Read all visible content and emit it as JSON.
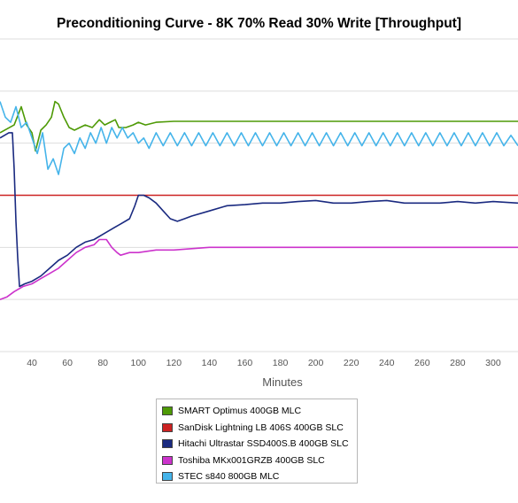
{
  "chart_data": {
    "type": "line",
    "title": "Preconditioning Curve - 8K 70% Read 30% Write [Throughput]",
    "xlabel": "Minutes",
    "ylabel": "",
    "xlim": [
      22,
      314
    ],
    "ylim": [
      0,
      6
    ],
    "x_ticks": [
      40,
      60,
      80,
      100,
      120,
      140,
      160,
      180,
      200,
      220,
      240,
      260,
      280,
      300
    ],
    "grid": true,
    "legend_position": "bottom",
    "series": [
      {
        "name": "SMART Optimus 400GB MLC",
        "color": "#4e9a06",
        "points": [
          [
            22,
            4.2
          ],
          [
            30,
            4.35
          ],
          [
            34,
            4.7
          ],
          [
            37,
            4.35
          ],
          [
            40,
            4.2
          ],
          [
            42,
            3.85
          ],
          [
            45,
            4.25
          ],
          [
            48,
            4.35
          ],
          [
            51,
            4.5
          ],
          [
            53,
            4.8
          ],
          [
            55,
            4.75
          ],
          [
            58,
            4.5
          ],
          [
            61,
            4.3
          ],
          [
            64,
            4.25
          ],
          [
            67,
            4.3
          ],
          [
            70,
            4.35
          ],
          [
            74,
            4.3
          ],
          [
            78,
            4.45
          ],
          [
            81,
            4.35
          ],
          [
            84,
            4.4
          ],
          [
            87,
            4.45
          ],
          [
            89,
            4.3
          ],
          [
            93,
            4.3
          ],
          [
            97,
            4.35
          ],
          [
            100,
            4.4
          ],
          [
            104,
            4.35
          ],
          [
            110,
            4.4
          ],
          [
            120,
            4.42
          ],
          [
            140,
            4.42
          ],
          [
            160,
            4.42
          ],
          [
            180,
            4.42
          ],
          [
            200,
            4.42
          ],
          [
            220,
            4.42
          ],
          [
            240,
            4.42
          ],
          [
            260,
            4.42
          ],
          [
            280,
            4.42
          ],
          [
            300,
            4.42
          ],
          [
            314,
            4.42
          ]
        ]
      },
      {
        "name": "SanDisk Lightning LB 406S 400GB SLC",
        "color": "#cc2222",
        "points": [
          [
            22,
            3.0
          ],
          [
            60,
            3.0
          ],
          [
            100,
            3.0
          ],
          [
            140,
            3.0
          ],
          [
            180,
            3.0
          ],
          [
            220,
            3.0
          ],
          [
            260,
            3.0
          ],
          [
            300,
            3.0
          ],
          [
            314,
            3.0
          ]
        ]
      },
      {
        "name": "Hitachi Ultrastar SSD400S.B 400GB SLC",
        "color": "#1a2a80",
        "points": [
          [
            22,
            4.1
          ],
          [
            27,
            4.2
          ],
          [
            29,
            4.2
          ],
          [
            30,
            3.5
          ],
          [
            31,
            2.5
          ],
          [
            32,
            1.8
          ],
          [
            33,
            1.25
          ],
          [
            36,
            1.3
          ],
          [
            40,
            1.35
          ],
          [
            45,
            1.45
          ],
          [
            50,
            1.6
          ],
          [
            55,
            1.75
          ],
          [
            60,
            1.85
          ],
          [
            65,
            2.0
          ],
          [
            70,
            2.1
          ],
          [
            75,
            2.15
          ],
          [
            80,
            2.25
          ],
          [
            85,
            2.35
          ],
          [
            90,
            2.45
          ],
          [
            95,
            2.55
          ],
          [
            98,
            2.8
          ],
          [
            100,
            3.0
          ],
          [
            103,
            3.0
          ],
          [
            106,
            2.95
          ],
          [
            110,
            2.85
          ],
          [
            114,
            2.7
          ],
          [
            118,
            2.55
          ],
          [
            122,
            2.5
          ],
          [
            126,
            2.55
          ],
          [
            130,
            2.6
          ],
          [
            140,
            2.7
          ],
          [
            150,
            2.8
          ],
          [
            160,
            2.82
          ],
          [
            170,
            2.85
          ],
          [
            180,
            2.85
          ],
          [
            190,
            2.88
          ],
          [
            200,
            2.9
          ],
          [
            210,
            2.85
          ],
          [
            220,
            2.85
          ],
          [
            230,
            2.88
          ],
          [
            240,
            2.9
          ],
          [
            250,
            2.85
          ],
          [
            260,
            2.85
          ],
          [
            270,
            2.85
          ],
          [
            280,
            2.88
          ],
          [
            290,
            2.85
          ],
          [
            300,
            2.88
          ],
          [
            314,
            2.85
          ]
        ]
      },
      {
        "name": "Toshiba MKx001GRZB 400GB SLC",
        "color": "#cc33cc",
        "points": [
          [
            22,
            1.0
          ],
          [
            26,
            1.05
          ],
          [
            30,
            1.15
          ],
          [
            35,
            1.25
          ],
          [
            40,
            1.3
          ],
          [
            45,
            1.4
          ],
          [
            50,
            1.5
          ],
          [
            55,
            1.6
          ],
          [
            60,
            1.75
          ],
          [
            65,
            1.9
          ],
          [
            70,
            2.0
          ],
          [
            75,
            2.05
          ],
          [
            78,
            2.15
          ],
          [
            82,
            2.15
          ],
          [
            85,
            2.0
          ],
          [
            88,
            1.9
          ],
          [
            90,
            1.85
          ],
          [
            95,
            1.9
          ],
          [
            100,
            1.9
          ],
          [
            110,
            1.95
          ],
          [
            120,
            1.95
          ],
          [
            140,
            2.0
          ],
          [
            160,
            2.0
          ],
          [
            180,
            2.0
          ],
          [
            200,
            2.0
          ],
          [
            220,
            2.0
          ],
          [
            240,
            2.0
          ],
          [
            260,
            2.0
          ],
          [
            280,
            2.0
          ],
          [
            300,
            2.0
          ],
          [
            314,
            2.0
          ]
        ]
      },
      {
        "name": "STEC s840 800GB MLC",
        "color": "#45b4ea",
        "points": [
          [
            22,
            4.8
          ],
          [
            25,
            4.5
          ],
          [
            28,
            4.4
          ],
          [
            31,
            4.7
          ],
          [
            34,
            4.3
          ],
          [
            37,
            4.4
          ],
          [
            40,
            4.1
          ],
          [
            43,
            3.8
          ],
          [
            46,
            4.2
          ],
          [
            49,
            3.5
          ],
          [
            52,
            3.7
          ],
          [
            55,
            3.4
          ],
          [
            58,
            3.9
          ],
          [
            61,
            4.0
          ],
          [
            64,
            3.8
          ],
          [
            67,
            4.1
          ],
          [
            70,
            3.9
          ],
          [
            73,
            4.2
          ],
          [
            76,
            4.0
          ],
          [
            79,
            4.3
          ],
          [
            82,
            4.0
          ],
          [
            85,
            4.3
          ],
          [
            88,
            4.1
          ],
          [
            91,
            4.3
          ],
          [
            94,
            4.1
          ],
          [
            97,
            4.2
          ],
          [
            100,
            4.0
          ],
          [
            103,
            4.1
          ],
          [
            106,
            3.9
          ],
          [
            110,
            4.2
          ],
          [
            114,
            3.95
          ],
          [
            118,
            4.2
          ],
          [
            122,
            3.95
          ],
          [
            126,
            4.2
          ],
          [
            130,
            3.95
          ],
          [
            134,
            4.2
          ],
          [
            138,
            3.95
          ],
          [
            142,
            4.2
          ],
          [
            146,
            3.95
          ],
          [
            150,
            4.2
          ],
          [
            154,
            3.95
          ],
          [
            158,
            4.2
          ],
          [
            162,
            3.95
          ],
          [
            166,
            4.2
          ],
          [
            170,
            3.95
          ],
          [
            174,
            4.2
          ],
          [
            178,
            3.95
          ],
          [
            182,
            4.2
          ],
          [
            186,
            3.95
          ],
          [
            190,
            4.2
          ],
          [
            194,
            3.95
          ],
          [
            198,
            4.2
          ],
          [
            202,
            3.95
          ],
          [
            206,
            4.2
          ],
          [
            210,
            3.95
          ],
          [
            214,
            4.2
          ],
          [
            218,
            3.95
          ],
          [
            222,
            4.2
          ],
          [
            226,
            3.95
          ],
          [
            230,
            4.2
          ],
          [
            234,
            3.95
          ],
          [
            238,
            4.2
          ],
          [
            242,
            3.95
          ],
          [
            246,
            4.2
          ],
          [
            250,
            3.95
          ],
          [
            254,
            4.2
          ],
          [
            258,
            3.95
          ],
          [
            262,
            4.2
          ],
          [
            266,
            3.95
          ],
          [
            270,
            4.2
          ],
          [
            274,
            3.95
          ],
          [
            278,
            4.2
          ],
          [
            282,
            3.95
          ],
          [
            286,
            4.2
          ],
          [
            290,
            3.95
          ],
          [
            294,
            4.2
          ],
          [
            298,
            3.95
          ],
          [
            302,
            4.2
          ],
          [
            306,
            3.95
          ],
          [
            310,
            4.15
          ],
          [
            314,
            3.95
          ]
        ]
      }
    ]
  }
}
